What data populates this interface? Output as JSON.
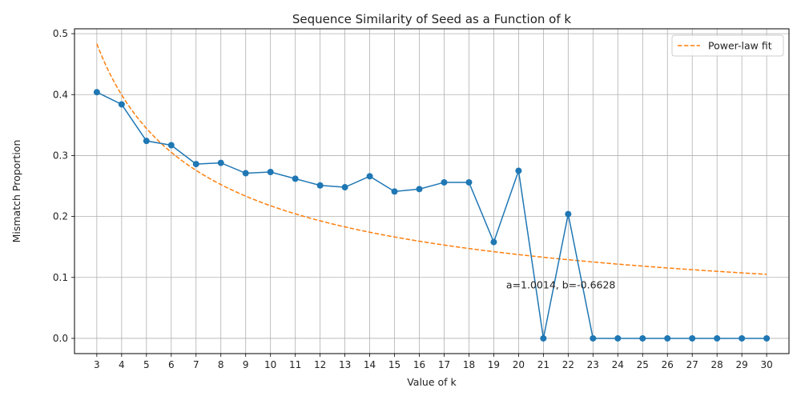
{
  "chart_data": {
    "type": "line",
    "title": "Sequence Similarity of Seed as a Function of k",
    "xlabel": "Value of k",
    "ylabel": "Mismatch Proportion",
    "x": [
      3,
      4,
      5,
      6,
      7,
      8,
      9,
      10,
      11,
      12,
      13,
      14,
      15,
      16,
      17,
      18,
      19,
      20,
      21,
      22,
      23,
      24,
      25,
      26,
      27,
      28,
      29,
      30
    ],
    "xlim": [
      2.1,
      30.9
    ],
    "ylim": [
      -0.025,
      0.508
    ],
    "yticks": [
      "0.0",
      "0.1",
      "0.2",
      "0.3",
      "0.4",
      "0.5"
    ],
    "grid": true,
    "legend_position": "top-right",
    "series": [
      {
        "values": [
          0.404,
          0.384,
          0.324,
          0.317,
          0.286,
          0.288,
          0.271,
          0.273,
          0.262,
          0.251,
          0.248,
          0.266,
          0.241,
          0.245,
          0.256,
          0.256,
          0.158,
          0.275,
          0.0,
          0.204,
          0.0,
          0.0,
          0.0,
          0.0,
          0.0,
          0.0,
          0.0,
          0.0
        ],
        "color": "#1f77b4",
        "style": "solid-with-markers"
      },
      {
        "name": "Power-law fit",
        "function": "a * k^b",
        "a": 1.0014,
        "b": -0.6628,
        "color": "#ff7f0e",
        "style": "dashed"
      }
    ],
    "annotation": {
      "text": "a=1.0014, b=-0.6628",
      "x": 19.5,
      "y": 0.082
    }
  }
}
